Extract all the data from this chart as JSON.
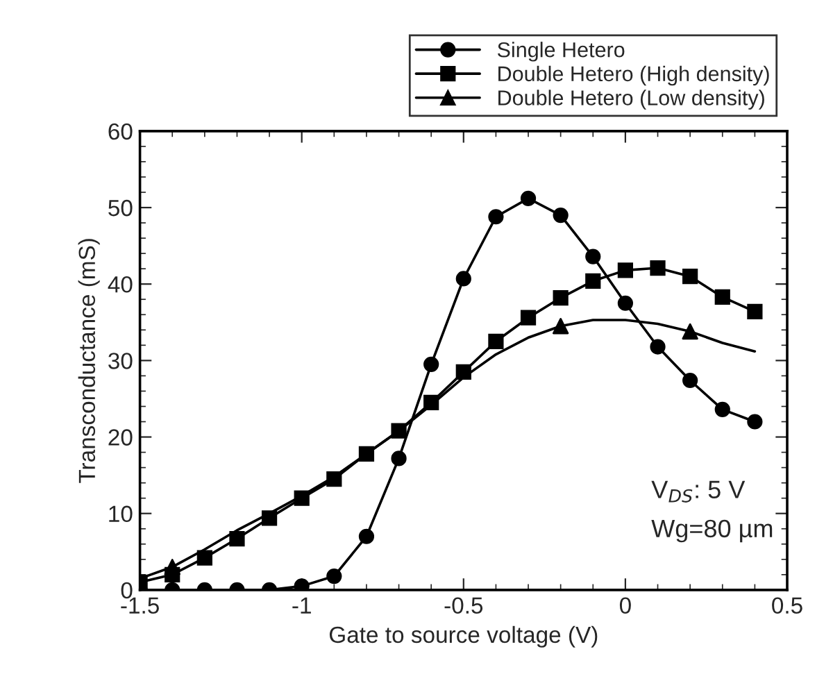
{
  "chart_data": {
    "type": "line",
    "xlabel": "Gate to source voltage (V)",
    "ylabel": "Transconductance (mS)",
    "xlim": [
      -1.5,
      0.5
    ],
    "xticks": [
      -1.5,
      -1,
      -0.5,
      0,
      0.5
    ],
    "ylim": [
      0,
      60
    ],
    "yticks": [
      0,
      10,
      20,
      30,
      40,
      50,
      60
    ],
    "grid": false,
    "legend": "top right",
    "line_style": "solid",
    "annotations": [
      "V$_{DS}$: 5 V",
      "Wg=80 µm"
    ],
    "series": [
      {
        "name": "Single Hetero",
        "color": "#000000",
        "marker": "circle",
        "x": [
          -1.5,
          -1.4,
          -1.3,
          -1.2,
          -1.1,
          -1.0,
          -0.9,
          -0.8,
          -0.7,
          -0.6,
          -0.5,
          -0.4,
          -0.3,
          -0.2,
          -0.1,
          0,
          0.1,
          0.2,
          0.3,
          0.4
        ],
        "values": [
          0,
          0,
          0,
          0,
          0,
          0.5,
          1.8,
          7,
          17.2,
          29.5,
          40.7,
          48.8,
          51.2,
          49,
          43.6,
          37.5,
          31.8,
          27.4,
          23.6,
          22
        ]
      },
      {
        "name": "Double Hetero (High density)",
        "color": "#000000",
        "marker": "square",
        "x": [
          -1.5,
          -1.4,
          -1.3,
          -1.2,
          -1.1,
          -1.0,
          -0.9,
          -0.8,
          -0.7,
          -0.6,
          -0.5,
          -0.4,
          -0.3,
          -0.2,
          -0.1,
          0,
          0.1,
          0.2,
          0.3,
          0.4
        ],
        "values": [
          1,
          2,
          4.2,
          6.7,
          9.4,
          12,
          14.5,
          17.8,
          20.8,
          24.5,
          28.5,
          32.5,
          35.6,
          38.2,
          40.4,
          41.8,
          42.1,
          41,
          38.3,
          36.4
        ]
      },
      {
        "type": "line",
        "color": "#000000",
        "marker": "none",
        "x": [
          -1.5,
          -1.4,
          -1.3,
          -1.2,
          -1.1,
          -1.0,
          -0.9,
          -0.8,
          -0.7,
          -0.6,
          -0.5,
          -0.4,
          -0.3,
          -0.2,
          -0.1,
          0,
          0.1,
          0.2,
          0.3,
          0.4
        ],
        "values": [
          1.5,
          3,
          5.3,
          7.8,
          10,
          12.3,
          14.8,
          17.8,
          20.8,
          24.2,
          27.8,
          30.8,
          33,
          34.5,
          35.3,
          35.3,
          34.8,
          33.8,
          32.3,
          31.2
        ]
      },
      {
        "name": "Double Hetero (Low density)",
        "type": "scatter",
        "color": "#000000",
        "marker": "triangle",
        "x": [
          -1.4,
          -0.2,
          0.2
        ],
        "values": [
          3,
          34.5,
          33.8
        ]
      }
    ]
  }
}
